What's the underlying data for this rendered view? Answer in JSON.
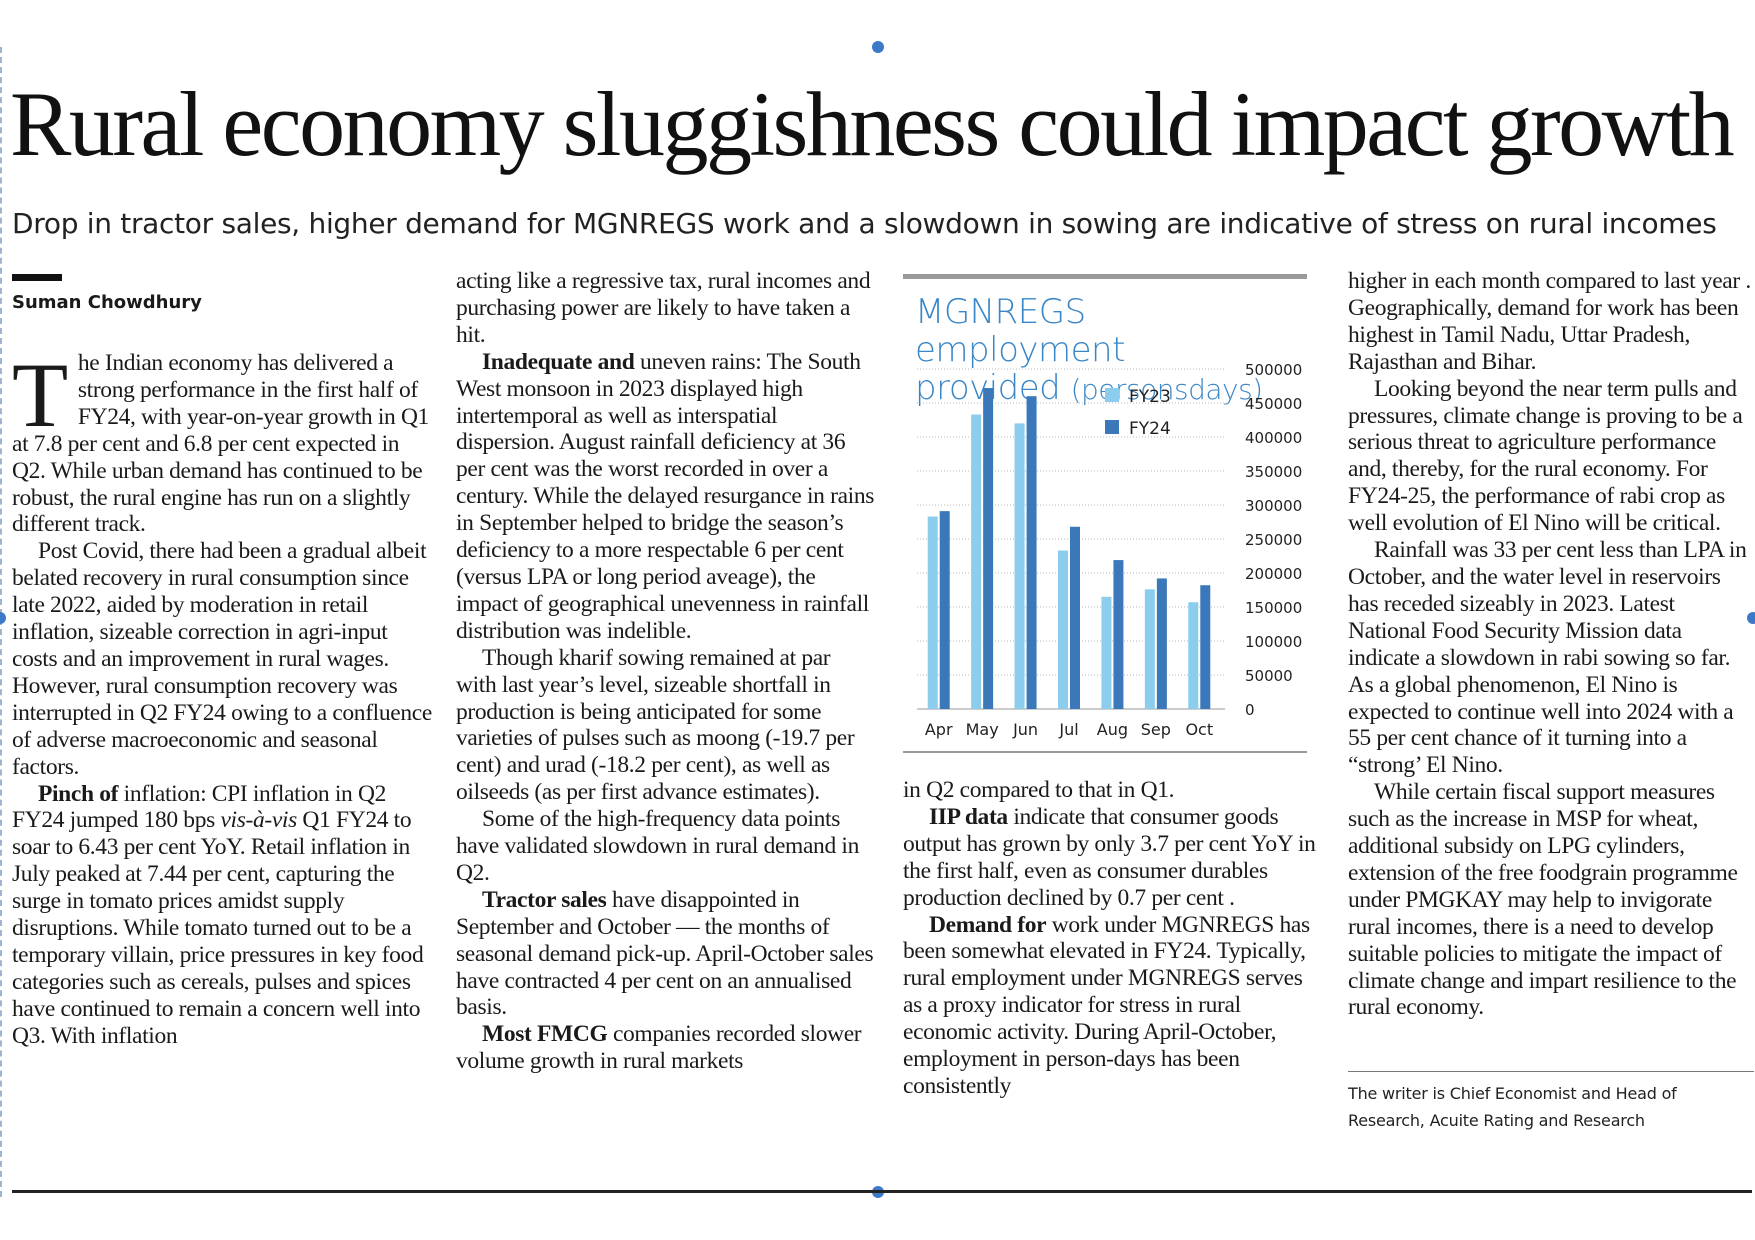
{
  "headline": "Rural economy sluggishness could impact growth",
  "standfirst": "Drop in tractor sales, higher demand for MGNREGS work and a slowdown in sowing are indicative of stress on rural incomes",
  "byline": "Suman Chowdhury",
  "col1": {
    "dropcap": "T",
    "p1": "he Indian economy has delivered a strong performance in the first half of FY24, with year-on-year growth in Q1 at 7.8 per cent and 6.8 per cent expected in Q2. While urban demand has continued to be robust, the rural engine has run on a slightly different track.",
    "p2": "Post Covid, there had been a gradual albeit belated recovery in rural consumption since late 2022, aided by moderation in retail inflation, sizeable correction in agri-input costs and an improvement in rural wages. However, rural consumption recovery was interrupted in Q2 FY24 owing to a confluence of adverse macroeconomic and seasonal factors.",
    "p3_lead": "Pinch of",
    "p3_a": " inflation: CPI inflation in Q2 FY24 jumped 180 bps ",
    "p3_ital": "vis-à-vis",
    "p3_b": " Q1 FY24 to soar to 6.43 per cent YoY. Retail inflation in July peaked at 7.44 per cent, capturing the surge in tomato prices amidst supply disruptions. While tomato turned out to be a temporary villain, price pressures in key food categories such as cereals, pulses and spices have continued to remain a concern well into Q3. With inflation"
  },
  "col2": {
    "p1": "acting like a regressive tax, rural incomes and purchasing power are likely to have taken a hit.",
    "p2_lead": "Inadequate and",
    "p2": " uneven rains: The South West monsoon in 2023 displayed high intertemporal as well as interspatial dispersion. August rainfall deficiency at 36 per cent was the worst recorded in over a century. While the delayed resurgance in rains in September helped to bridge the season’s deficiency to a more respectable 6 per cent (versus LPA or long period aveage), the impact of geographical unevenness in rainfall distribution was indelible.",
    "p3": "Though kharif sowing remained at par with last year’s level, sizeable shortfall in production is being anticipated for some varieties of pulses such as moong (-19.7 per cent) and urad (-18.2 per cent), as well as oilseeds (as per first advance estimates).",
    "p4": "Some of the high-frequency data points have validated slowdown in rural demand in Q2.",
    "p5_lead": "Tractor sales",
    "p5": " have disappointed in September and October — the months of seasonal demand pick-up. April-October sales have contracted 4 per cent on an annualised basis.",
    "p6_lead": "Most FMCG",
    "p6": " companies recorded slower volume growth in rural markets"
  },
  "col3": {
    "p1": "in Q2 compared to that in Q1.",
    "p2_lead": "IIP data",
    "p2": " indicate that consumer goods output has grown by only 3.7 per cent YoY in the first half, even as consumer durables production declined by 0.7 per cent .",
    "p3_lead": "Demand for",
    "p3": " work under MGNREGS has been somewhat elevated in FY24. Typically, rural employment under MGNREGS serves as a proxy indicator for stress in rural economic activity. During April-October, employment in person-days has been consistently"
  },
  "col4": {
    "p1": "higher in each month compared to last year . Geographically, demand for work has been highest in Tamil Nadu, Uttar Pradesh, Rajasthan and Bihar.",
    "p2": "Looking beyond the near term pulls and pressures, climate change is proving to be a serious threat to agriculture performance and, thereby, for the rural economy. For FY24-25, the performance of rabi crop as well evolution of El Nino will be critical.",
    "p3": "Rainfall was 33 per cent less than LPA in October, and the water level in reservoirs has receded sizeably in 2023. Latest National Food Security Mission data indicate a slowdown in rabi sowing so far. As a global phenomenon, El Nino is expected to continue well into 2024 with a 55 per cent chance of it turning into a “strong’ El Nino.",
    "p4": "While certain fiscal support measures such as the increase in MSP for wheat, additional subsidy on LPG cylinders, extension of the free foodgrain programme under PMGKAY may help to invigorate rural incomes, there is a need to develop suitable policies to mitigate the impact of climate change and impart resilience to the rural economy."
  },
  "writer_note": "The writer is Chief Economist and Head of Research, Acuite Rating and Research",
  "chart_data": {
    "type": "bar",
    "title": "MGNREGS employment",
    "title_line2": "provided",
    "title_unit": "(personsdays)",
    "categories": [
      "Apr",
      "May",
      "Jun",
      "Jul",
      "Aug",
      "Sep",
      "Oct"
    ],
    "series": [
      {
        "name": "FY23",
        "color": "#8cccec",
        "values": [
          283000,
          433000,
          420000,
          233000,
          165000,
          176000,
          157000
        ]
      },
      {
        "name": "FY24",
        "color": "#3a78b9",
        "values": [
          291000,
          472000,
          460000,
          268000,
          219000,
          192000,
          182000
        ]
      }
    ],
    "ylim": [
      0,
      500000
    ],
    "yticks": [
      "500000",
      "450000",
      "400000",
      "350000",
      "300000",
      "250000",
      "200000",
      "150000",
      "100000",
      "50000",
      "0"
    ],
    "grid": true,
    "legend_position": "top-center",
    "y_axis_side": "right"
  }
}
